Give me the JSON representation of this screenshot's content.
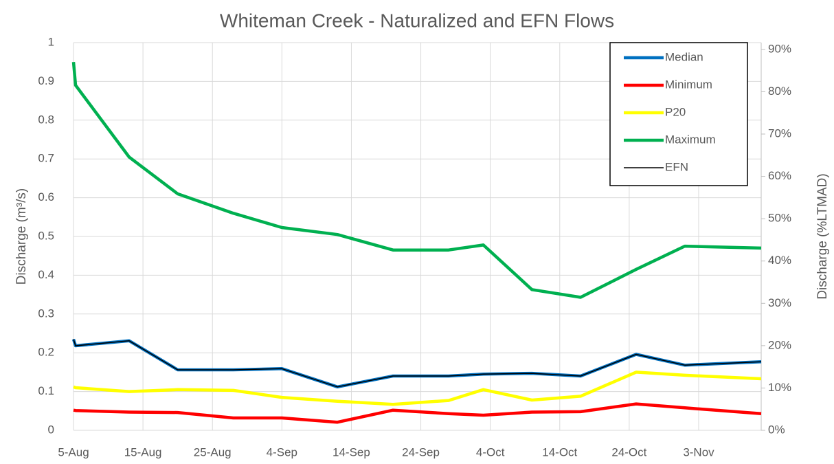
{
  "chart_data": {
    "type": "line",
    "title": "Whiteman Creek - Naturalized and EFN Flows",
    "y_label": "Discharge (m³/s)",
    "y2_label": "Discharge (%LTMAD)",
    "x": [
      0,
      0.3,
      8,
      15,
      23,
      30,
      38,
      46,
      54,
      59,
      66,
      73,
      81,
      88,
      99
    ],
    "xlim": [
      0,
      99
    ],
    "xticks": [
      {
        "value": 0,
        "label": "5-Aug"
      },
      {
        "value": 10,
        "label": "15-Aug"
      },
      {
        "value": 20,
        "label": "25-Aug"
      },
      {
        "value": 30,
        "label": "4-Sep"
      },
      {
        "value": 40,
        "label": "14-Sep"
      },
      {
        "value": 50,
        "label": "24-Sep"
      },
      {
        "value": 60,
        "label": "4-Oct"
      },
      {
        "value": 70,
        "label": "14-Oct"
      },
      {
        "value": 80,
        "label": "24-Oct"
      },
      {
        "value": 90,
        "label": "3-Nov"
      }
    ],
    "ylim": [
      0,
      1
    ],
    "yticks": [
      0,
      0.1,
      0.2,
      0.3,
      0.4,
      0.5,
      0.6,
      0.7,
      0.8,
      0.9,
      1
    ],
    "y2lim": [
      0,
      91.6
    ],
    "y2ticks": [
      {
        "value": 0,
        "label": "0%"
      },
      {
        "value": 10,
        "label": "10%"
      },
      {
        "value": 20,
        "label": "20%"
      },
      {
        "value": 30,
        "label": "30%"
      },
      {
        "value": 40,
        "label": "40%"
      },
      {
        "value": 50,
        "label": "50%"
      },
      {
        "value": 60,
        "label": "60%"
      },
      {
        "value": 70,
        "label": "70%"
      },
      {
        "value": 80,
        "label": "80%"
      },
      {
        "value": 90,
        "label": "90%"
      }
    ],
    "grid": true,
    "legend": "upper right",
    "series": [
      {
        "name": "Median",
        "color": "#0070c0",
        "values": [
          0.235,
          0.218,
          0.231,
          0.156,
          0.156,
          0.159,
          0.112,
          0.14,
          0.14,
          0.145,
          0.147,
          0.14,
          0.196,
          0.168,
          0.177
        ]
      },
      {
        "name": "Minimum",
        "color": "#ff0000",
        "values": [
          0.052,
          0.051,
          0.047,
          0.046,
          0.032,
          0.032,
          0.021,
          0.052,
          0.043,
          0.039,
          0.047,
          0.048,
          0.068,
          0.058,
          0.043
        ]
      },
      {
        "name": "P20",
        "color": "#ffff00",
        "values": [
          0.112,
          0.11,
          0.1,
          0.105,
          0.103,
          0.085,
          0.075,
          0.067,
          0.077,
          0.105,
          0.078,
          0.088,
          0.15,
          0.142,
          0.133
        ]
      },
      {
        "name": "Maximum",
        "color": "#00b050",
        "values": [
          0.95,
          0.89,
          0.705,
          0.61,
          0.56,
          0.523,
          0.505,
          0.465,
          0.465,
          0.478,
          0.363,
          0.343,
          0.415,
          0.475,
          0.47
        ]
      },
      {
        "name": "EFN",
        "color": "#000000",
        "values": [
          0.235,
          0.218,
          0.231,
          0.156,
          0.156,
          0.159,
          0.112,
          0.14,
          0.14,
          0.145,
          0.147,
          0.14,
          0.196,
          0.168,
          0.177
        ]
      }
    ]
  }
}
